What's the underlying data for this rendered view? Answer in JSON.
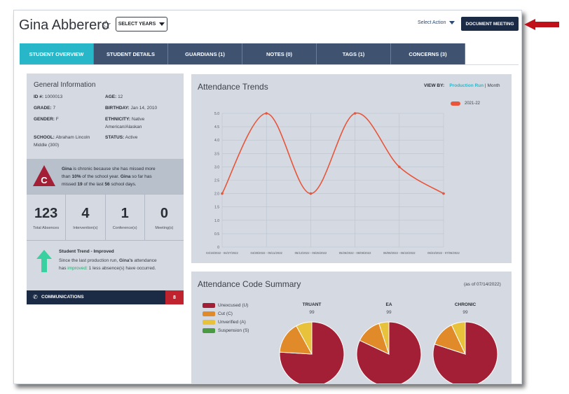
{
  "header": {
    "student_name": "Gina Abberero",
    "star_icon": "☆",
    "select_years_label": "SELECT YEARS",
    "select_action_label": "Select Action",
    "document_meeting_label": "DOCUMENT MEETING"
  },
  "tabs": [
    {
      "label": "STUDENT OVERVIEW",
      "active": true
    },
    {
      "label": "STUDENT DETAILS",
      "active": false
    },
    {
      "label": "GUARDIANS (1)",
      "active": false
    },
    {
      "label": "NOTES (0)",
      "active": false
    },
    {
      "label": "TAGS (1)",
      "active": false
    },
    {
      "label": "CONCERNS (3)",
      "active": false
    }
  ],
  "general_info": {
    "title": "General Information",
    "id_label": "ID #:",
    "id_value": "1000013",
    "age_label": "AGE:",
    "age_value": "12",
    "grade_label": "GRADE:",
    "grade_value": "7",
    "birthday_label": "BIRTHDAY:",
    "birthday_value": "Jan 14, 2010",
    "gender_label": "GENDER:",
    "gender_value": "F",
    "ethnicity_label": "ETHNICITY:",
    "ethnicity_value_1": "Native",
    "ethnicity_value_2": "American/Alaskan",
    "school_label": "SCHOOL:",
    "school_value_1": "Abraham Lincoln",
    "school_value_2": "Middle (300)",
    "status_label": "STATUS:",
    "status_value": "Active"
  },
  "chronic": {
    "badge": "C",
    "name": "Gina",
    "line1": " is chronic because she has missed more",
    "line2_pre": "than ",
    "percent": "10%",
    "line2_post": " of the school year. ",
    "name2": "Gina",
    "line2_end": " so far has",
    "line3_pre": "missed ",
    "missed": "19",
    "line3_mid": " of the last ",
    "last": "56",
    "line3_end": " school days."
  },
  "stats": [
    {
      "value": "123",
      "label": "Total Absences"
    },
    {
      "value": "4",
      "label": "Intervention(s)"
    },
    {
      "value": "1",
      "label": "Conference(s)"
    },
    {
      "value": "0",
      "label": "Meeting(s)"
    }
  ],
  "trend": {
    "title": "Student Trend - Improved",
    "line1_pre": "Since the last production run, ",
    "name": "Gina's",
    "line1_post": " attendance",
    "line2_pre": "has ",
    "improved": "improved",
    "line2_post": ": 1 less absence(s) have occurred."
  },
  "communications": {
    "label": "COMMUNICATIONS",
    "count": "8",
    "icon": "phone-icon"
  },
  "attendance_trends": {
    "title": "Attendance Trends",
    "view_by_label": "VIEW BY:",
    "production_run_label": "Production Run",
    "separator": " | ",
    "month_label": "Month"
  },
  "chart_data": {
    "type": "line",
    "title": "Attendance Trends",
    "categories": [
      "04/19/2022 - 04/27/2022",
      "04/28/2022 - 05/11/2022",
      "05/12/2022 - 05/25/2022",
      "05/26/2022 - 06/08/2022",
      "06/09/2022 - 06/22/2022",
      "06/23/2022 - 07/06/2022"
    ],
    "series": [
      {
        "name": "2021-22",
        "values": [
          2.0,
          5.0,
          2.0,
          5.0,
          3.0,
          2.0
        ],
        "color": "#e8553a"
      }
    ],
    "ylim": [
      0,
      5.0
    ],
    "yticks": [
      "0",
      "0.5",
      "1.0",
      "1.5",
      "2.0",
      "2.5",
      "3.0",
      "3.5",
      "4.0",
      "4.5",
      "5.0"
    ],
    "grid": true,
    "legend": "top-right"
  },
  "code_summary": {
    "title": "Attendance Code Summary",
    "as_of": "(as of 07/14/2022)",
    "legend": [
      {
        "label": "Unexcused (U)",
        "color": "#a31f35"
      },
      {
        "label": "Cut (C)",
        "color": "#e08a2a"
      },
      {
        "label": "Unverified (A)",
        "color": "#e8c23a"
      },
      {
        "label": "Suspension (S)",
        "color": "#4a9a44"
      }
    ],
    "pies": [
      {
        "title": "TRUANT",
        "count": "99",
        "slices": [
          0.76,
          0.16,
          0.08,
          0
        ]
      },
      {
        "title": "EA",
        "count": "99",
        "slices": [
          0.82,
          0.13,
          0.05,
          0
        ]
      },
      {
        "title": "CHRONIC",
        "count": "99",
        "slices": [
          0.8,
          0.13,
          0.07,
          0
        ]
      }
    ]
  },
  "colors": {
    "accent": "#27b7c9",
    "navy": "#1b2a45",
    "tab": "#3f5370",
    "red": "#c0222e",
    "line": "#e8553a"
  }
}
